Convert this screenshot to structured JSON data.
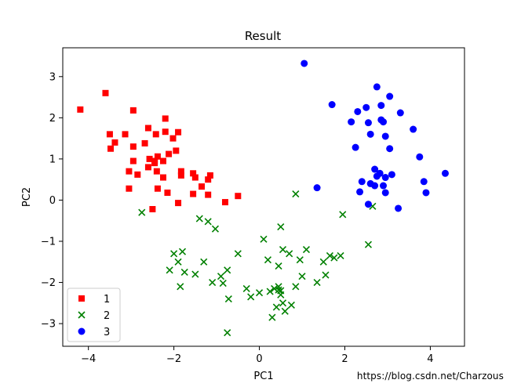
{
  "chart_data": {
    "type": "scatter",
    "title": "Result",
    "xlabel": "PC1",
    "ylabel": "PC2",
    "xlim": [
      -4.6,
      4.8
    ],
    "ylim": [
      -3.55,
      3.7
    ],
    "xticks": [
      -4,
      -2,
      0,
      2,
      4
    ],
    "yticks": [
      -3,
      -2,
      -1,
      0,
      1,
      2,
      3
    ],
    "xtick_labels": [
      "−4",
      "−2",
      "0",
      "2",
      "4"
    ],
    "ytick_labels": [
      "−3",
      "−2",
      "−1",
      "0",
      "1",
      "2",
      "3"
    ],
    "grid": false,
    "legend_position": "lower-left",
    "series": [
      {
        "name": "1",
        "marker": "square",
        "color": "#ff0000",
        "points": [
          [
            -4.19,
            2.2
          ],
          [
            -3.6,
            2.6
          ],
          [
            -3.5,
            1.6
          ],
          [
            -3.38,
            1.4
          ],
          [
            -3.48,
            1.25
          ],
          [
            -3.14,
            1.6
          ],
          [
            -2.95,
            2.18
          ],
          [
            -2.95,
            1.3
          ],
          [
            -2.95,
            0.95
          ],
          [
            -3.05,
            0.7
          ],
          [
            -3.05,
            0.28
          ],
          [
            -2.85,
            0.62
          ],
          [
            -2.6,
            1.75
          ],
          [
            -2.68,
            1.38
          ],
          [
            -2.42,
            1.6
          ],
          [
            -2.38,
            1.06
          ],
          [
            -2.57,
            1.0
          ],
          [
            -2.45,
            0.95
          ],
          [
            -2.2,
            1.66
          ],
          [
            -2.2,
            1.98
          ],
          [
            -2.02,
            1.5
          ],
          [
            -1.9,
            1.65
          ],
          [
            -1.95,
            1.2
          ],
          [
            -2.12,
            1.12
          ],
          [
            -2.25,
            0.95
          ],
          [
            -2.45,
            0.9
          ],
          [
            -2.6,
            0.8
          ],
          [
            -2.4,
            0.7
          ],
          [
            -2.25,
            0.55
          ],
          [
            -2.15,
            0.18
          ],
          [
            -1.83,
            0.7
          ],
          [
            -1.83,
            0.6
          ],
          [
            -1.55,
            0.65
          ],
          [
            -1.5,
            0.55
          ],
          [
            -1.35,
            0.33
          ],
          [
            -1.2,
            0.5
          ],
          [
            -1.15,
            0.6
          ],
          [
            -1.55,
            0.15
          ],
          [
            -1.2,
            0.13
          ],
          [
            -1.9,
            -0.07
          ],
          [
            -2.38,
            0.28
          ],
          [
            -2.5,
            -0.22
          ],
          [
            -0.8,
            -0.05
          ],
          [
            -0.5,
            0.1
          ]
        ]
      },
      {
        "name": "2",
        "marker": "x",
        "color": "#008000",
        "points": [
          [
            -2.75,
            -0.3
          ],
          [
            -1.4,
            -0.45
          ],
          [
            -1.2,
            -0.52
          ],
          [
            -1.03,
            -0.7
          ],
          [
            -2.0,
            -1.3
          ],
          [
            -1.8,
            -1.25
          ],
          [
            -1.9,
            -1.5
          ],
          [
            -2.1,
            -1.7
          ],
          [
            -1.75,
            -1.75
          ],
          [
            -1.5,
            -1.8
          ],
          [
            -1.85,
            -2.1
          ],
          [
            -1.3,
            -1.5
          ],
          [
            -1.1,
            -2.0
          ],
          [
            -0.9,
            -1.85
          ],
          [
            -0.75,
            -1.7
          ],
          [
            -0.85,
            -2.02
          ],
          [
            -0.72,
            -2.4
          ],
          [
            -0.5,
            -1.3
          ],
          [
            -0.75,
            -3.22
          ],
          [
            -0.3,
            -2.15
          ],
          [
            -0.2,
            -2.35
          ],
          [
            0.0,
            -2.25
          ],
          [
            0.1,
            -0.95
          ],
          [
            0.2,
            -1.45
          ],
          [
            0.25,
            -2.22
          ],
          [
            0.35,
            -2.15
          ],
          [
            0.3,
            -2.85
          ],
          [
            0.45,
            -2.1
          ],
          [
            0.45,
            -2.18
          ],
          [
            0.5,
            -2.3
          ],
          [
            0.55,
            -2.5
          ],
          [
            0.6,
            -2.7
          ],
          [
            0.4,
            -2.6
          ],
          [
            0.5,
            -2.2
          ],
          [
            0.45,
            -1.6
          ],
          [
            0.55,
            -1.2
          ],
          [
            0.5,
            -0.65
          ],
          [
            0.7,
            -1.3
          ],
          [
            0.75,
            -2.55
          ],
          [
            0.85,
            -2.1
          ],
          [
            0.95,
            -1.45
          ],
          [
            1.0,
            -1.85
          ],
          [
            1.1,
            -1.2
          ],
          [
            1.35,
            -2.0
          ],
          [
            1.5,
            -1.5
          ],
          [
            1.55,
            -1.82
          ],
          [
            1.65,
            -1.35
          ],
          [
            1.75,
            -1.4
          ],
          [
            1.9,
            -1.35
          ],
          [
            1.95,
            -0.35
          ],
          [
            2.55,
            -1.08
          ],
          [
            0.85,
            0.15
          ],
          [
            2.65,
            -0.15
          ]
        ]
      },
      {
        "name": "3",
        "marker": "circle",
        "color": "#0000ff",
        "points": [
          [
            1.05,
            3.32
          ],
          [
            1.7,
            2.32
          ],
          [
            1.35,
            0.3
          ],
          [
            2.15,
            1.9
          ],
          [
            2.3,
            2.15
          ],
          [
            2.5,
            2.25
          ],
          [
            2.75,
            2.75
          ],
          [
            2.85,
            2.3
          ],
          [
            3.05,
            2.52
          ],
          [
            3.3,
            2.12
          ],
          [
            2.55,
            1.88
          ],
          [
            2.85,
            1.95
          ],
          [
            2.9,
            1.9
          ],
          [
            2.6,
            1.6
          ],
          [
            2.95,
            1.55
          ],
          [
            2.25,
            1.28
          ],
          [
            3.05,
            1.25
          ],
          [
            3.6,
            1.72
          ],
          [
            3.85,
            0.45
          ],
          [
            3.9,
            0.18
          ],
          [
            4.35,
            0.65
          ],
          [
            3.75,
            1.05
          ],
          [
            2.7,
            0.75
          ],
          [
            2.75,
            0.58
          ],
          [
            2.82,
            0.65
          ],
          [
            2.9,
            0.35
          ],
          [
            2.95,
            0.55
          ],
          [
            3.1,
            0.62
          ],
          [
            2.6,
            0.4
          ],
          [
            2.4,
            0.45
          ],
          [
            2.35,
            0.2
          ],
          [
            2.55,
            -0.1
          ],
          [
            2.95,
            0.18
          ],
          [
            3.25,
            -0.2
          ],
          [
            2.7,
            0.35
          ]
        ]
      }
    ]
  },
  "watermark": "https://blog.csdn.net/Charzous"
}
